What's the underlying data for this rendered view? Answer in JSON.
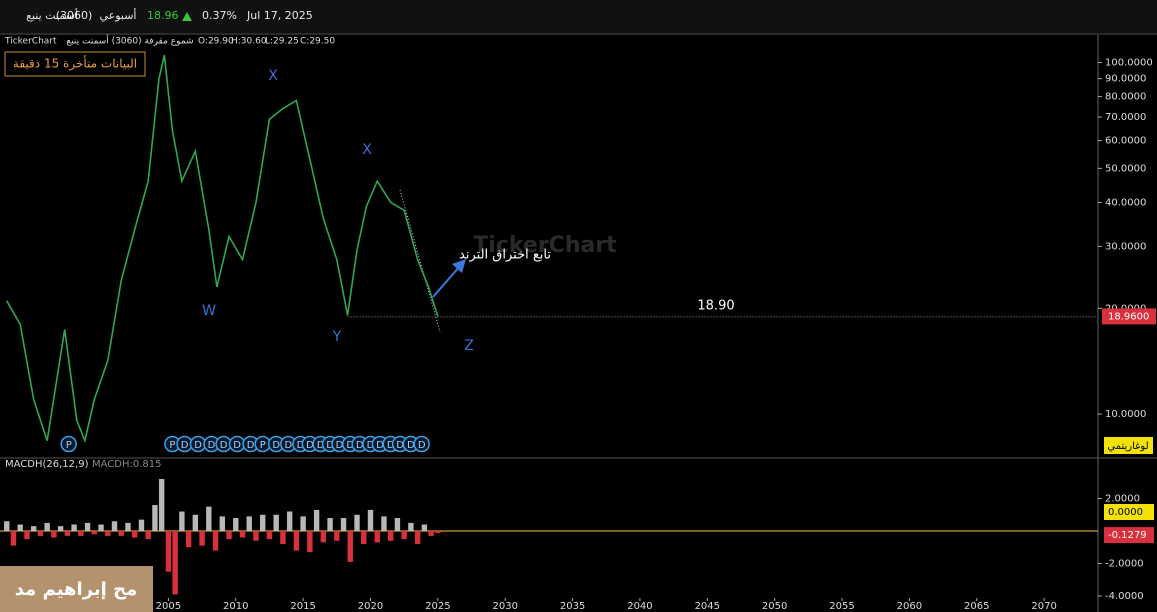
{
  "header": {
    "name": "أسمنت ينبع",
    "code": "(3060)",
    "period": "أسبوعي",
    "price": "18.96",
    "change": "0.37%",
    "date": "Jul 17, 2025"
  },
  "info_line": {
    "source": "TickerChart",
    "description": "شموع مقرفة (3060) أسمنت ينبع",
    "open": "O:29.90",
    "high": "H:30.60",
    "low": "L:29.25",
    "close": "C:29.50"
  },
  "delay_notice": "البيانات متأخرة 15 دقيقة",
  "watermark": "TickerChart",
  "overlay_text": "مح إبراهيم مد",
  "chart_data": [
    {
      "type": "line",
      "log_scale": true,
      "color": "#2fa84f",
      "scale_label": "لوغاريتمي",
      "x": [
        1993,
        1994,
        1995,
        1996,
        1997.3,
        1998.2,
        1998.8,
        1999.5,
        2000.5,
        2001.5,
        2002.5,
        2003.5,
        2004.3,
        2004.7,
        2005.3,
        2006,
        2007,
        2008,
        2008.6,
        2009.5,
        2010.5,
        2011.5,
        2012.5,
        2013.5,
        2014.5,
        2015.5,
        2016.5,
        2017.5,
        2018.3,
        2019,
        2019.7,
        2020.5,
        2021.5,
        2022.5,
        2023.5,
        2024.3,
        2025
      ],
      "values": [
        21,
        18,
        11,
        8.4,
        17.4,
        9.6,
        8.4,
        11,
        14.2,
        24,
        33.5,
        46,
        90,
        105,
        64,
        46,
        56,
        33.5,
        23,
        32,
        27.5,
        40,
        69,
        74,
        78,
        53,
        36,
        27.5,
        19.1,
        29.3,
        39,
        46,
        40,
        38,
        27.5,
        23,
        18.96
      ],
      "xlim": [
        1992.5,
        2074
      ],
      "ylim": [
        7.5,
        119
      ],
      "yticks": [
        {
          "value": 10,
          "label": "10.0000"
        },
        {
          "value": 20,
          "label": "20.0000"
        },
        {
          "value": 30,
          "label": "30.0000"
        },
        {
          "value": 40,
          "label": "40.0000"
        },
        {
          "value": 50,
          "label": "50.0000"
        },
        {
          "value": 60,
          "label": "60.0000"
        },
        {
          "value": 70,
          "label": "70.0000"
        },
        {
          "value": 80,
          "label": "80.0000"
        },
        {
          "value": 90,
          "label": "90.0000"
        },
        {
          "value": 100,
          "label": "100.0000"
        }
      ],
      "last_value": {
        "value": 18.96,
        "label": "18.9600"
      },
      "hline": {
        "value": 18.9,
        "label": "18.90"
      },
      "annotations": [
        "X",
        "W",
        "X",
        "Y",
        "Z",
        "تابع اختراق الترند"
      ],
      "events": [
        {
          "x": 1997.6,
          "label": "P"
        },
        {
          "x": 2005.3,
          "label": "P"
        },
        {
          "x": 2006.2,
          "label": "D"
        },
        {
          "x": 2007.2,
          "label": "D"
        },
        {
          "x": 2008.2,
          "label": "D"
        },
        {
          "x": 2009.1,
          "label": "D"
        },
        {
          "x": 2010.1,
          "label": "D"
        },
        {
          "x": 2011.1,
          "label": "D"
        },
        {
          "x": 2012.0,
          "label": "P"
        },
        {
          "x": 2013.0,
          "label": "D"
        },
        {
          "x": 2013.9,
          "label": "D"
        },
        {
          "x": 2014.8,
          "label": "D"
        },
        {
          "x": 2015.5,
          "label": "D"
        },
        {
          "x": 2016.3,
          "label": "D"
        },
        {
          "x": 2017.0,
          "label": "D"
        },
        {
          "x": 2017.7,
          "label": "D"
        },
        {
          "x": 2018.5,
          "label": "D"
        },
        {
          "x": 2019.2,
          "label": "D"
        },
        {
          "x": 2020.0,
          "label": "D"
        },
        {
          "x": 2020.7,
          "label": "D"
        },
        {
          "x": 2021.5,
          "label": "D"
        },
        {
          "x": 2022.2,
          "label": "D"
        },
        {
          "x": 2023.0,
          "label": "D"
        },
        {
          "x": 2023.8,
          "label": "D"
        }
      ]
    },
    {
      "type": "bar",
      "title": "MACDH(26,12,9)",
      "readout": "MACDH:0.815",
      "colors": {
        "positive": "#b8b8b8",
        "negative": "#d9303d",
        "zero_line": "#c89a3a"
      },
      "x": [
        1993,
        1993.5,
        1994,
        1994.5,
        1995,
        1995.5,
        1996,
        1996.5,
        1997,
        1997.5,
        1998,
        1998.5,
        1999,
        1999.5,
        2000,
        2000.5,
        2001,
        2001.5,
        2002,
        2002.5,
        2003,
        2003.5,
        2004,
        2004.5,
        2005,
        2005.5,
        2006,
        2006.5,
        2007,
        2007.5,
        2008,
        2008.5,
        2009,
        2009.5,
        2010,
        2010.5,
        2011,
        2011.5,
        2012,
        2012.5,
        2013,
        2013.5,
        2014,
        2014.5,
        2015,
        2015.5,
        2016,
        2016.5,
        2017,
        2017.5,
        2018,
        2018.5,
        2019,
        2019.5,
        2020,
        2020.5,
        2021,
        2021.5,
        2022,
        2022.5,
        2023,
        2023.5,
        2024,
        2024.5,
        2025
      ],
      "values": [
        0.6,
        -0.9,
        0.4,
        -0.5,
        0.3,
        -0.3,
        0.5,
        -0.4,
        0.3,
        -0.3,
        0.4,
        -0.3,
        0.5,
        -0.2,
        0.4,
        -0.3,
        0.6,
        -0.3,
        0.5,
        -0.4,
        0.7,
        -0.5,
        1.6,
        3.2,
        -2.5,
        -3.9,
        1.2,
        -1.0,
        1.0,
        -0.9,
        1.5,
        -1.2,
        0.9,
        -0.5,
        0.8,
        -0.4,
        0.9,
        -0.6,
        1.0,
        -0.5,
        1.0,
        -0.8,
        1.2,
        -1.2,
        0.9,
        -1.3,
        1.3,
        -0.7,
        0.8,
        -0.6,
        0.8,
        -1.9,
        1.0,
        -0.8,
        1.3,
        -0.7,
        0.9,
        -0.6,
        0.8,
        -0.5,
        0.5,
        -0.8,
        0.4,
        -0.3,
        -0.1279
      ],
      "xlim": [
        1992.5,
        2074
      ],
      "ylim": [
        -4.06,
        4.37
      ],
      "xticks": [
        2005,
        2010,
        2015,
        2020,
        2025,
        2030,
        2035,
        2040,
        2045,
        2050,
        2055,
        2060,
        2065,
        2070
      ],
      "yticks": [
        {
          "value": 2,
          "label": "2.0000"
        },
        {
          "value": -2,
          "label": "-2.0000"
        },
        {
          "value": -4,
          "label": "-4.0000"
        }
      ],
      "zero_label": {
        "value": 0,
        "label": "0.0000"
      },
      "last_value": -0.1279
    }
  ]
}
